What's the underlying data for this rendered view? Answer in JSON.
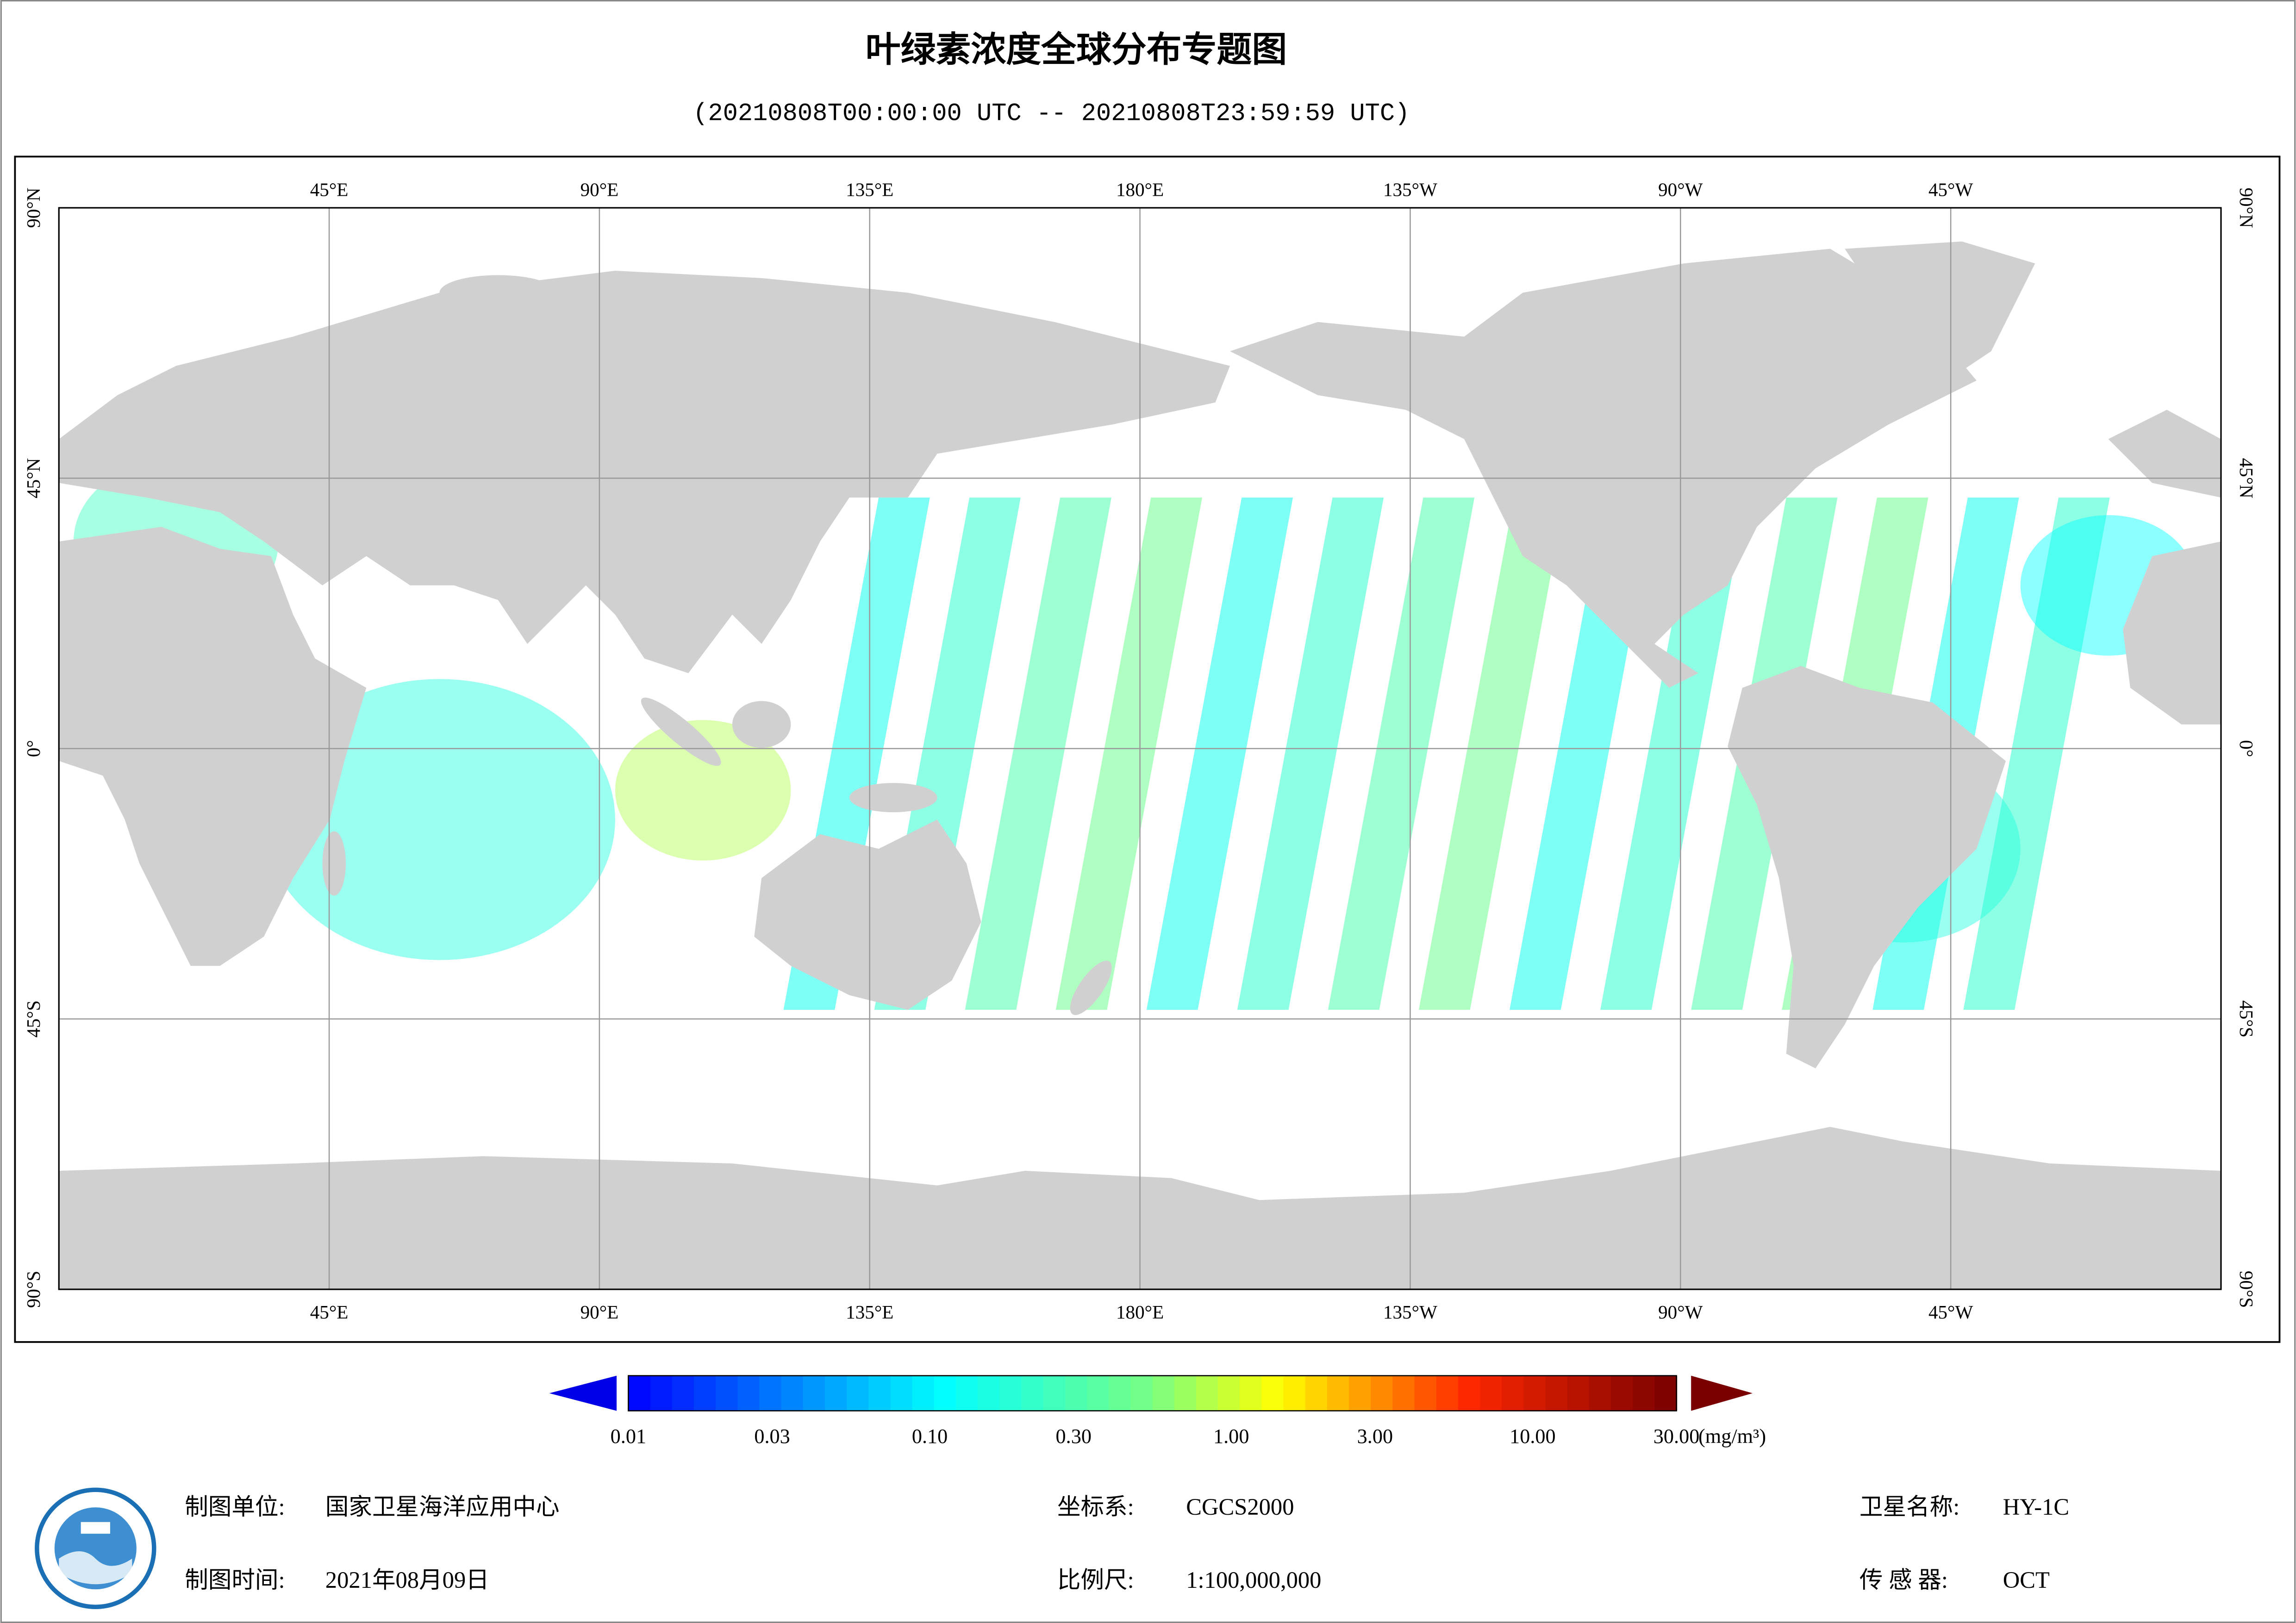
{
  "header": {
    "title": "叶绿素浓度全球分布专题图",
    "subtitle": "(20210808T00:00:00 UTC -- 20210808T23:59:59 UTC)"
  },
  "map": {
    "lon_labels": [
      "45°E",
      "90°E",
      "135°E",
      "180°E",
      "135°W",
      "90°W",
      "45°W"
    ],
    "lat_labels": [
      "90°N",
      "45°N",
      "0°",
      "45°S",
      "90°S"
    ]
  },
  "colorbar": {
    "range": [
      0.01,
      30
    ],
    "log": true,
    "ticks": [
      {
        "value": 0.01,
        "label": "0.01"
      },
      {
        "value": 0.03,
        "label": "0.03"
      },
      {
        "value": 0.1,
        "label": "0.10"
      },
      {
        "value": 0.3,
        "label": "0.30"
      },
      {
        "value": 1,
        "label": "1.00"
      },
      {
        "value": 3,
        "label": "3.00"
      },
      {
        "value": 10,
        "label": "10.00"
      },
      {
        "value": 30,
        "label": "30.00"
      }
    ],
    "unit": "(mg/m³)"
  },
  "footer": {
    "unit_label": "制图单位:",
    "unit_value": "国家卫星海洋应用中心",
    "coord_label": "坐标系:",
    "coord_value": "CGCS2000",
    "satellite_label": "卫星名称:",
    "satellite_value": "HY-1C",
    "date_label": "制图时间:",
    "date_value": "2021年08月09日",
    "scale_label": "比例尺:",
    "scale_value": "1:100,000,000",
    "sensor_label": "传 感 器:",
    "sensor_value": "OCT"
  }
}
